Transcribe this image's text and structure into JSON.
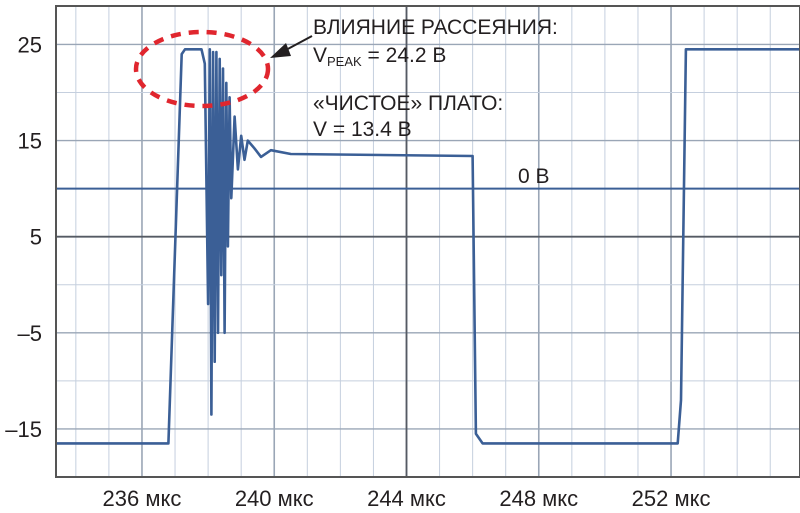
{
  "chart_data": {
    "type": "line",
    "title": "",
    "xlabel": "",
    "ylabel": "",
    "xlim": [
      233.4,
      255.9
    ],
    "ylim": [
      -20,
      29
    ],
    "x_ticks": [
      236,
      240,
      244,
      248,
      252
    ],
    "x_tick_labels": [
      "236 мкс",
      "240 мкс",
      "244 мкс",
      "248 мкс",
      "252 мкс"
    ],
    "y_ticks": [
      25,
      15,
      5,
      -5,
      -15
    ],
    "y_tick_labels": [
      "25",
      "15",
      "5",
      "–5",
      "–15"
    ],
    "grid": true,
    "legend": "none",
    "series": [
      {
        "x": [
          233.4,
          236.8,
          237.2,
          237.3,
          237.8,
          237.9,
          238.0,
          238.05,
          238.1,
          238.15,
          238.2,
          238.25,
          238.3,
          238.35,
          238.4,
          238.45,
          238.5,
          238.55,
          238.6,
          238.65,
          238.7,
          238.8,
          238.9,
          239.0,
          239.1,
          239.2,
          239.4,
          239.6,
          239.9,
          240.5,
          246.0,
          246.1,
          246.3,
          252.2,
          252.3,
          252.45,
          252.8,
          255.9
        ],
        "y": [
          -16.5,
          -16.5,
          24,
          24.5,
          24.5,
          23.0,
          -2,
          24.5,
          -13.5,
          24.2,
          -8,
          24.2,
          -5,
          23.5,
          1,
          22.5,
          -5,
          21,
          4,
          19.5,
          9,
          17.5,
          12,
          15.5,
          13,
          15,
          14.2,
          13.3,
          14.0,
          13.6,
          13.4,
          -15.5,
          -16.5,
          -16.5,
          -12,
          24.5,
          24.5,
          24.5
        ]
      }
    ],
    "reference_lines": [
      {
        "y": 10,
        "label": "0 В"
      }
    ],
    "annotations": {
      "dissipation_title": "ВЛИЯНИЕ РАССЕЯНИЯ:",
      "peak_prefix": "V",
      "peak_subscript": "PEAK",
      "peak_value": " = 24.2 В",
      "plateau_title": "«ЧИСТОЕ» ПЛАТО:",
      "plateau_value": "V = 13.4 В",
      "zero_label": "0 В"
    },
    "colors": {
      "signal": "#3b5f96",
      "grid": "#c5cfde",
      "axis": "#555555",
      "zero_line": "#3b5f96",
      "highlight_ellipse": "#e0262e",
      "background": "#ffffff"
    }
  }
}
